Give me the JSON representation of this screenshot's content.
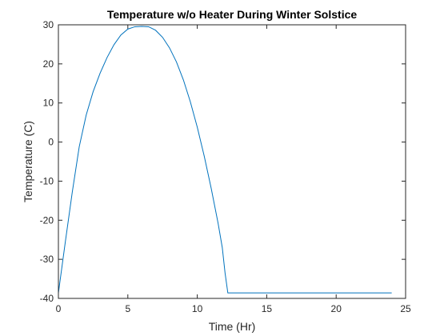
{
  "chart_data": {
    "type": "line",
    "title": "Temperature w/o Heater During Winter Solstice",
    "xlabel": "Time (Hr)",
    "ylabel": "Temperature (C)",
    "xlim": [
      0,
      25
    ],
    "ylim": [
      -40,
      30
    ],
    "xticks": [
      0,
      5,
      10,
      15,
      20,
      25
    ],
    "yticks": [
      -40,
      -30,
      -20,
      -10,
      0,
      10,
      20,
      30
    ],
    "grid": false,
    "series": [
      {
        "color": "#0072BD",
        "x": [
          0,
          0.5,
          1,
          1.5,
          2,
          2.5,
          3,
          3.5,
          4,
          4.5,
          5,
          5.5,
          6,
          6.5,
          7,
          7.5,
          8,
          8.5,
          9,
          9.5,
          10,
          10.5,
          11,
          11.5,
          11.8,
          12,
          12.2,
          13,
          14,
          15,
          16,
          17,
          18,
          19,
          20,
          21,
          22,
          23,
          24
        ],
        "y": [
          -38.6,
          -25.5,
          -12.8,
          -1.2,
          6.9,
          12.9,
          17.6,
          21.6,
          24.9,
          27.4,
          28.9,
          29.5,
          29.6,
          29.5,
          28.6,
          26.8,
          24.1,
          20.5,
          15.9,
          10.3,
          3.8,
          -3.6,
          -11.8,
          -20.8,
          -27.0,
          -33.5,
          -38.6,
          -38.6,
          -38.6,
          -38.6,
          -38.6,
          -38.6,
          -38.6,
          -38.6,
          -38.6,
          -38.6,
          -38.6,
          -38.6,
          -38.6
        ]
      }
    ]
  }
}
